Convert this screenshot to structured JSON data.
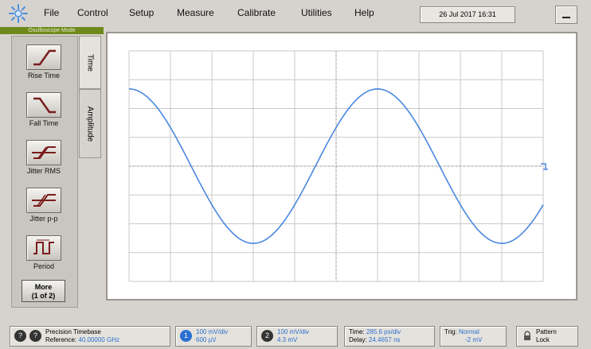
{
  "menubar": {
    "items": [
      "File",
      "Control",
      "Setup",
      "Measure",
      "Calibrate",
      "Utilities",
      "Help"
    ],
    "datetime": "26 Jul 2017  16:31"
  },
  "mode_label": "Oscilloscope Mode",
  "tabs": [
    "Time",
    "Amplitude"
  ],
  "tools": [
    {
      "label": "Rise Time",
      "icon": "rise-time-icon"
    },
    {
      "label": "Fall Time",
      "icon": "fall-time-icon"
    },
    {
      "label": "Jitter RMS",
      "icon": "jitter-rms-icon"
    },
    {
      "label": "Jitter p-p",
      "icon": "jitter-pp-icon"
    },
    {
      "label": "Period",
      "icon": "period-icon"
    }
  ],
  "more_button": {
    "line1": "More",
    "line2": "(1 of 2)"
  },
  "trace": {
    "color": "#4a88e0",
    "ground_marker": "1"
  },
  "status": {
    "timebase_line1": "Precision Timebase",
    "timebase_line2_label": "Reference:",
    "timebase_line2_value": "40.00000 GHz",
    "ch1_line1": "100 mV/div",
    "ch1_line2": "600 µV",
    "ch2_line1": "100 mV/div",
    "ch2_line2": "4.3 mV",
    "time_line1_label": "Time:",
    "time_line1_value": "285.6 ps/div",
    "time_line2_label": "Delay:",
    "time_line2_value": "24.4657 ns",
    "trig_line1_label": "Trig:",
    "trig_line1_value": "Normal",
    "trig_line2_value": "-2 mV",
    "pattern_line1": "Pattern",
    "pattern_line2": "Lock"
  },
  "colors": {
    "accent": "#2c6fd2",
    "mode_bar": "#6e8a1c",
    "trace": "#4a88e0"
  }
}
